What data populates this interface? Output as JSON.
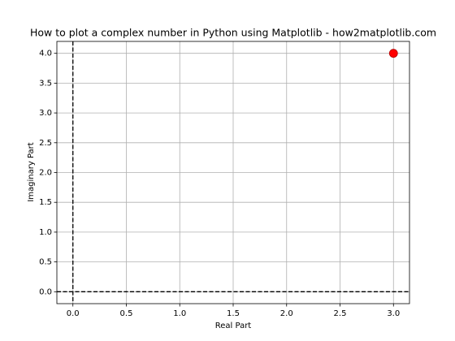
{
  "chart_data": {
    "type": "scatter",
    "title": "How to plot a complex number in Python using Matplotlib - how2matplotlib.com",
    "xlabel": "Real Part",
    "ylabel": "Imaginary Part",
    "x": [
      3
    ],
    "y": [
      4
    ],
    "color": "#ff0000",
    "xlim": [
      -0.15,
      3.15
    ],
    "xticks": [
      {
        "value": 0,
        "label": "0.0"
      },
      0.5,
      {
        "value": 1,
        "label": "1.0"
      },
      1.5,
      {
        "value": 2,
        "label": "2.0"
      },
      2.5,
      {
        "value": 3,
        "label": "3.0"
      }
    ],
    "ylim": [
      -0.2,
      4.2
    ],
    "yticks": [
      {
        "value": 0,
        "label": "0.0"
      },
      0.5,
      {
        "value": 1,
        "label": "1.0"
      },
      1.5,
      {
        "value": 2,
        "label": "2.0"
      },
      2.5,
      {
        "value": 3,
        "label": "3.0"
      },
      3.5,
      {
        "value": 4,
        "label": "4.0"
      }
    ],
    "grid": true,
    "hline": 0,
    "vline": 0
  }
}
